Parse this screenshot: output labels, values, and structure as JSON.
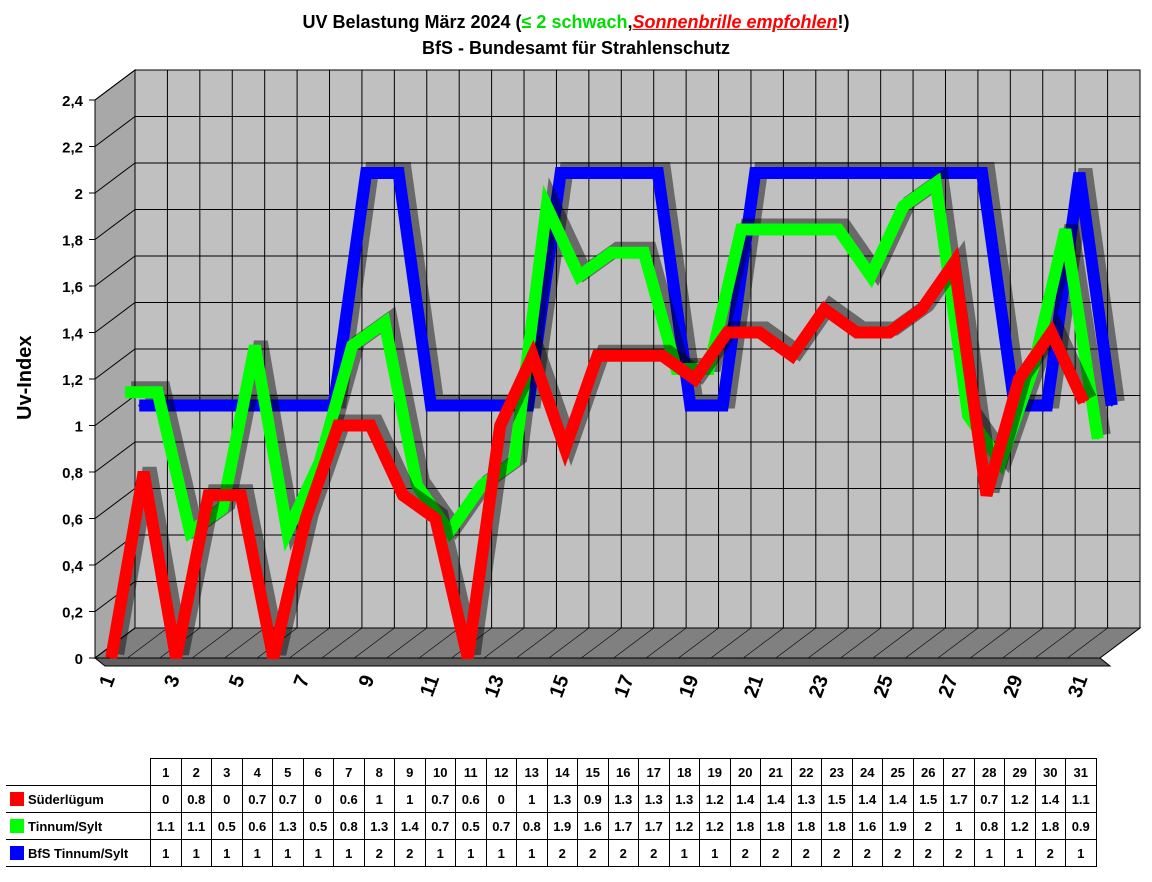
{
  "title": {
    "prefix": "UV Belastung März 2024 (",
    "green_part": "≤ 2 schwach",
    "comma": ",",
    "red_part": "Sonnenbrille empfohlen",
    "suffix": "!)",
    "line2": "BfS - Bundesamt für Strahlenschutz"
  },
  "chart_data": {
    "type": "line",
    "ylabel": "Uv-Index",
    "ylim": [
      0,
      2.4
    ],
    "yticks": [
      "0",
      "0,2",
      "0,4",
      "0,6",
      "0,8",
      "1",
      "1,2",
      "1,4",
      "1,6",
      "1,8",
      "2",
      "2,2",
      "2,4"
    ],
    "x_tick_labels": [
      "1",
      "3",
      "5",
      "7",
      "9",
      "11",
      "13",
      "15",
      "17",
      "19",
      "21",
      "23",
      "25",
      "27",
      "29",
      "31"
    ],
    "categories": [
      "1",
      "2",
      "3",
      "4",
      "5",
      "6",
      "7",
      "8",
      "9",
      "10",
      "11",
      "12",
      "13",
      "14",
      "15",
      "16",
      "17",
      "18",
      "19",
      "20",
      "21",
      "22",
      "23",
      "24",
      "25",
      "26",
      "27",
      "28",
      "29",
      "30",
      "31"
    ],
    "grid": true,
    "legend": "data-table",
    "series": [
      {
        "name": "Süderlügum",
        "color": "#ff0000",
        "values": [
          0,
          0.8,
          0,
          0.7,
          0.7,
          0,
          0.6,
          1,
          1,
          0.7,
          0.6,
          0,
          1,
          1.3,
          0.9,
          1.3,
          1.3,
          1.3,
          1.2,
          1.4,
          1.4,
          1.3,
          1.5,
          1.4,
          1.4,
          1.5,
          1.7,
          0.7,
          1.2,
          1.4,
          1.1
        ]
      },
      {
        "name": "Tinnum/Sylt",
        "color": "#00ff00",
        "values": [
          1.1,
          1.1,
          0.5,
          0.6,
          1.3,
          0.5,
          0.8,
          1.3,
          1.4,
          0.7,
          0.5,
          0.7,
          0.8,
          1.9,
          1.6,
          1.7,
          1.7,
          1.2,
          1.2,
          1.8,
          1.8,
          1.8,
          1.8,
          1.6,
          1.9,
          2,
          1,
          0.8,
          1.2,
          1.8,
          0.9
        ]
      },
      {
        "name": "BfS Tinnum/Sylt",
        "color": "#0000ff",
        "values": [
          1,
          1,
          1,
          1,
          1,
          1,
          1,
          2,
          2,
          1,
          1,
          1,
          1,
          2,
          2,
          2,
          2,
          1,
          1,
          2,
          2,
          2,
          2,
          2,
          2,
          2,
          2,
          1,
          1,
          2,
          1
        ]
      }
    ]
  }
}
